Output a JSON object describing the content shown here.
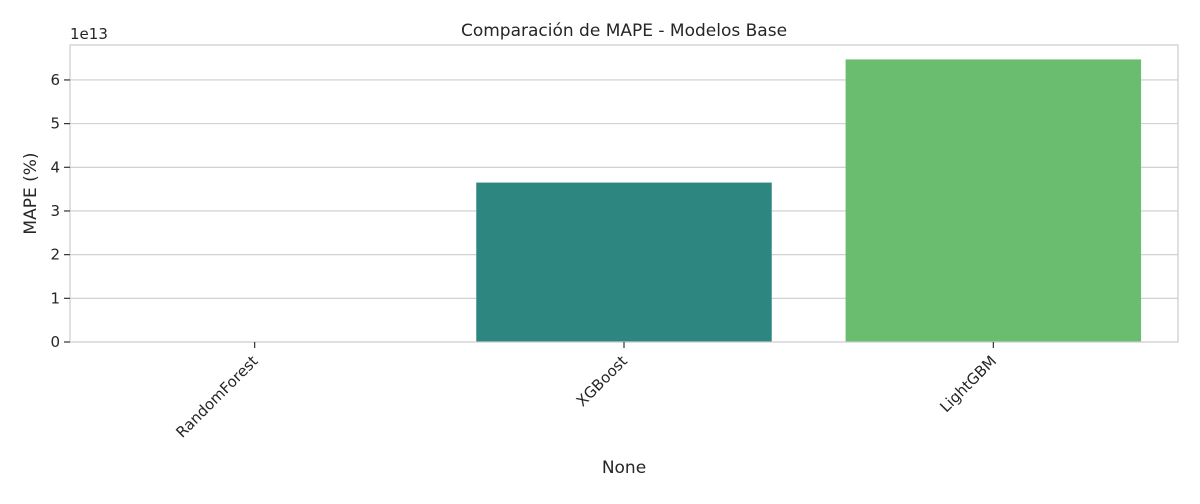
{
  "chart_data": {
    "type": "bar",
    "title": "Comparación de MAPE - Modelos Base",
    "xlabel": "None",
    "ylabel": "MAPE (%)",
    "scale_offset_label": "1e13",
    "scale_factor": 10000000000000.0,
    "categories": [
      "RandomForest",
      "XGBoost",
      "LightGBM"
    ],
    "values": [
      0,
      36500000000000,
      64700000000000
    ],
    "ylim": [
      0,
      68000000000000
    ],
    "yticks": [
      0,
      1,
      2,
      3,
      4,
      5,
      6
    ],
    "grid": true,
    "colors": [
      "#440154",
      "#2e8680",
      "#6abd6e"
    ]
  }
}
